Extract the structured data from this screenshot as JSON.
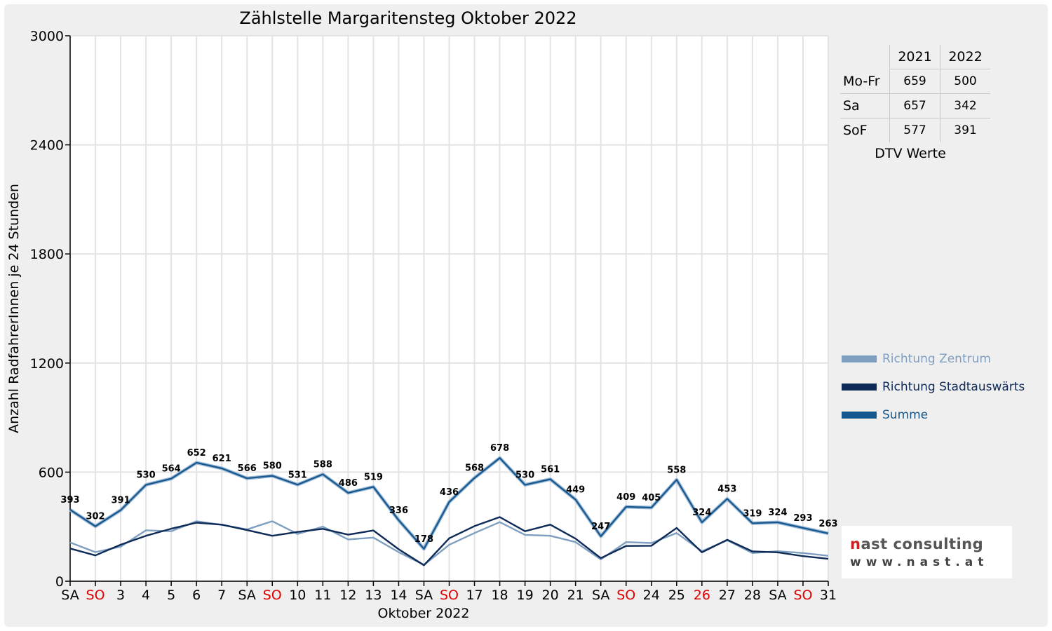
{
  "chart_data": {
    "type": "line",
    "title": "Zählstelle Margaritensteg Oktober 2022",
    "xlabel": "Oktober 2022",
    "ylabel": "Anzahl RadfahrerInnen je 24 Stunden",
    "ylim": [
      0,
      3000
    ],
    "yticks": [
      0,
      600,
      1200,
      1800,
      2400,
      3000
    ],
    "grid": true,
    "legend_position": "right",
    "categories": [
      "SA",
      "SO",
      "3",
      "4",
      "5",
      "6",
      "7",
      "SA",
      "SO",
      "10",
      "11",
      "12",
      "13",
      "14",
      "SA",
      "SO",
      "17",
      "18",
      "19",
      "20",
      "21",
      "SA",
      "SO",
      "24",
      "25",
      "26",
      "27",
      "28",
      "SA",
      "SO",
      "31"
    ],
    "category_colors": [
      "#000000",
      "#e00000",
      "#000000",
      "#000000",
      "#000000",
      "#000000",
      "#000000",
      "#000000",
      "#e00000",
      "#000000",
      "#000000",
      "#000000",
      "#000000",
      "#000000",
      "#000000",
      "#e00000",
      "#000000",
      "#000000",
      "#000000",
      "#000000",
      "#000000",
      "#000000",
      "#e00000",
      "#000000",
      "#000000",
      "#e00000",
      "#000000",
      "#000000",
      "#000000",
      "#e00000",
      "#000000"
    ],
    "series": [
      {
        "name": "Richtung Zentrum",
        "color": "#7f9fc0",
        "values": [
          213,
          160,
          190,
          280,
          275,
          330,
          310,
          285,
          330,
          260,
          300,
          230,
          240,
          160,
          90,
          200,
          265,
          325,
          255,
          250,
          215,
          120,
          215,
          210,
          265,
          165,
          225,
          155,
          165,
          155,
          140
        ]
      },
      {
        "name": "Richtung Stadtauswärts",
        "color": "#0e2a57",
        "values": [
          180,
          142,
          201,
          250,
          289,
          322,
          311,
          281,
          250,
          271,
          288,
          256,
          279,
          176,
          88,
          236,
          303,
          353,
          275,
          311,
          234,
          127,
          194,
          195,
          293,
          159,
          228,
          164,
          159,
          138,
          123
        ]
      },
      {
        "name": "Summe",
        "color": "#15578c",
        "values": [
          393,
          302,
          391,
          530,
          564,
          652,
          621,
          566,
          580,
          531,
          588,
          486,
          519,
          336,
          178,
          436,
          568,
          678,
          530,
          561,
          449,
          247,
          409,
          405,
          558,
          324,
          453,
          319,
          324,
          293,
          263
        ]
      }
    ]
  },
  "dtv_table": {
    "headers": [
      "2021",
      "2022"
    ],
    "rows": [
      {
        "label": "Mo-Fr",
        "v2021": "659",
        "v2022": "500"
      },
      {
        "label": "Sa",
        "v2021": "657",
        "v2022": "342"
      },
      {
        "label": "SoF",
        "v2021": "577",
        "v2022": "391"
      }
    ],
    "caption": "DTV Werte"
  },
  "logo": {
    "name_prefix": "n",
    "name_rest": "ast consulting",
    "url": "www.nast.at"
  }
}
